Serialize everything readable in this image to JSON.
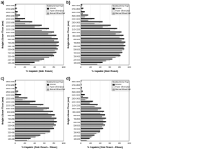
{
  "chart_data": [
    {
      "type": "barh",
      "label": "a)",
      "x_label": "% Capable (Side Reach)",
      "y_label": "Height Above Floor (mm)",
      "legend_title": "Mobility Device Type",
      "categories": [
        "1800-1900",
        "1700-1800",
        "1600-1700",
        "1500-1600",
        "1400-1500",
        "1300-1400",
        "1200-1300",
        "1100-1200",
        "1000-1100",
        "900-1000",
        "800-900",
        "700-800",
        "600-700",
        "500-600",
        "400-500",
        "300-400",
        "200-300",
        "100-200"
      ],
      "series": [
        {
          "name": "Scooter",
          "color": "#000000",
          "values": [
            2,
            3,
            5,
            10,
            20,
            35,
            55,
            70,
            80,
            85,
            88,
            90,
            90,
            88,
            85,
            80,
            60,
            40
          ]
        },
        {
          "name": "Power Wheelchair",
          "color": "#ffffff",
          "values": [
            1,
            2,
            4,
            8,
            15,
            30,
            50,
            65,
            75,
            82,
            86,
            88,
            88,
            86,
            82,
            75,
            55,
            35
          ]
        },
        {
          "name": "Manual Wheelchair",
          "color": "#999999",
          "values": [
            0,
            1,
            2,
            5,
            10,
            20,
            40,
            55,
            68,
            75,
            80,
            85,
            85,
            82,
            78,
            70,
            50,
            30
          ]
        }
      ],
      "xlim": [
        0,
        100
      ],
      "xticks": [
        0,
        20,
        40,
        60,
        80,
        100
      ],
      "grid": true
    },
    {
      "type": "barh",
      "label": "b)",
      "x_label": "% Capable (Side Reach)",
      "y_label": "Height Above Floor (mm)",
      "legend_title": "Mobility Device Type",
      "categories": [
        "1800-1900",
        "1700-1800",
        "1600-1700",
        "1500-1600",
        "1400-1500",
        "1300-1400",
        "1200-1300",
        "1100-1200",
        "1000-1100",
        "900-1000",
        "800-900",
        "700-800",
        "600-700",
        "500-600",
        "400-500",
        "300-400",
        "200-300",
        "100-200"
      ],
      "series": [
        {
          "name": "Scooter",
          "color": "#000000",
          "values": [
            3,
            5,
            8,
            15,
            28,
            45,
            62,
            75,
            84,
            88,
            90,
            92,
            92,
            90,
            86,
            82,
            65,
            45
          ]
        },
        {
          "name": "Power Wheelchair",
          "color": "#ffffff",
          "values": [
            2,
            3,
            6,
            12,
            22,
            38,
            56,
            70,
            80,
            85,
            88,
            90,
            90,
            88,
            84,
            78,
            60,
            40
          ]
        },
        {
          "name": "Manual Wheelchair",
          "color": "#999999",
          "values": [
            1,
            2,
            4,
            8,
            15,
            28,
            45,
            60,
            72,
            80,
            84,
            88,
            88,
            85,
            80,
            72,
            52,
            34
          ]
        }
      ],
      "xlim": [
        0,
        100
      ],
      "xticks": [
        0,
        20,
        40,
        60,
        80,
        100
      ],
      "grid": true
    },
    {
      "type": "barh",
      "label": "c)",
      "x_label": "% Capable (Side Reach - Elbow)",
      "y_label": "Height Above Floor (mm)",
      "legend_title": "Mobility Device Type",
      "categories": [
        "1800-1900",
        "1700-1800",
        "1600-1700",
        "1500-1600",
        "1400-1500",
        "1300-1400",
        "1200-1300",
        "1100-1200",
        "1000-1100",
        "900-1000",
        "800-900",
        "700-800",
        "600-700",
        "500-600",
        "400-500",
        "300-400",
        "200-300",
        "100-200"
      ],
      "series": [
        {
          "name": "Scooter",
          "color": "#000000",
          "values": [
            1,
            2,
            3,
            6,
            12,
            25,
            42,
            58,
            70,
            78,
            82,
            85,
            86,
            84,
            80,
            72,
            52,
            32
          ]
        },
        {
          "name": "Power Wheelchair",
          "color": "#ffffff",
          "values": [
            0,
            1,
            2,
            5,
            10,
            20,
            36,
            52,
            65,
            74,
            80,
            83,
            84,
            82,
            76,
            68,
            48,
            28
          ]
        },
        {
          "name": "Manual Wheelchair",
          "color": "#999999",
          "values": [
            0,
            1,
            1,
            3,
            7,
            15,
            30,
            45,
            58,
            68,
            75,
            80,
            80,
            78,
            72,
            62,
            42,
            24
          ]
        }
      ],
      "xlim": [
        0,
        100
      ],
      "xticks": [
        0,
        20,
        40,
        60,
        80,
        100
      ],
      "grid": true
    },
    {
      "type": "barh",
      "label": "d)",
      "x_label": "% Capable (Side Reach - Elbow)",
      "y_label": "Height Above Floor (mm)",
      "legend_title": "Mobility Device Type",
      "categories": [
        "1800-1900",
        "1700-1800",
        "1600-1700",
        "1500-1600",
        "1400-1500",
        "1300-1400",
        "1200-1300",
        "1100-1200",
        "1000-1100",
        "900-1000",
        "800-900",
        "700-800",
        "600-700",
        "500-600",
        "400-500",
        "300-400",
        "200-300",
        "100-200"
      ],
      "series": [
        {
          "name": "Scooter",
          "color": "#000000",
          "values": [
            1,
            1,
            2,
            4,
            8,
            15,
            25,
            35,
            42,
            48,
            50,
            52,
            52,
            50,
            46,
            40,
            28,
            18
          ]
        },
        {
          "name": "Power Wheelchair",
          "color": "#ffffff",
          "values": [
            0,
            1,
            1,
            3,
            6,
            12,
            22,
            32,
            40,
            45,
            48,
            50,
            50,
            48,
            44,
            36,
            25,
            15
          ]
        },
        {
          "name": "Manual Wheelchair",
          "color": "#999999",
          "values": [
            0,
            0,
            1,
            2,
            4,
            9,
            18,
            28,
            35,
            40,
            44,
            46,
            46,
            44,
            40,
            32,
            22,
            12
          ]
        }
      ],
      "xlim": [
        0,
        100
      ],
      "xticks": [
        0,
        20,
        40,
        60,
        80,
        100
      ],
      "grid": true
    }
  ]
}
